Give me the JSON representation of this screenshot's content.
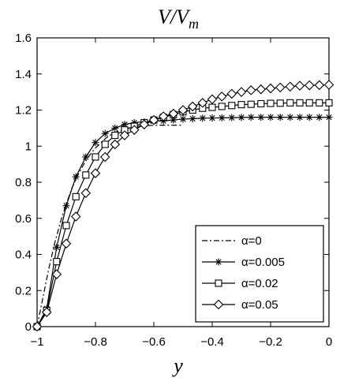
{
  "chart_data": {
    "type": "line",
    "title_main": "V/V",
    "title_sub": "m",
    "xlabel": "y",
    "xlim": [
      -1,
      0
    ],
    "ylim": [
      0,
      1.6
    ],
    "x_ticks": [
      "−1",
      "−0.8",
      "−0.6",
      "−0.4",
      "−0.2",
      "0"
    ],
    "x_tick_values": [
      -1,
      -0.8,
      -0.6,
      -0.4,
      -0.2,
      0
    ],
    "y_ticks": [
      "0",
      "0.2",
      "0.4",
      "0.6",
      "0.8",
      "1",
      "1.2",
      "1.4",
      "1.6"
    ],
    "y_tick_values": [
      0,
      0.2,
      0.4,
      0.6,
      0.8,
      1,
      1.2,
      1.4,
      1.6
    ],
    "grid": false,
    "legend_position": "bottom-right",
    "series": [
      {
        "name": "α=0",
        "style": "dashdot",
        "marker": "none",
        "x": [
          -1,
          -0.98,
          -0.96,
          -0.94,
          -0.92,
          -0.9,
          -0.88,
          -0.86,
          -0.84,
          -0.82,
          -0.8,
          -0.78,
          -0.76,
          -0.74,
          -0.72,
          -0.7,
          -0.68,
          -0.66,
          -0.64,
          -0.62,
          -0.6,
          -0.58,
          -0.56,
          -0.54,
          -0.52,
          -0.5
        ],
        "y": [
          0,
          0.16,
          0.32,
          0.46,
          0.58,
          0.68,
          0.77,
          0.84,
          0.9,
          0.95,
          0.99,
          1.02,
          1.05,
          1.07,
          1.085,
          1.095,
          1.103,
          1.108,
          1.112,
          1.114,
          1.115,
          1.116,
          1.116,
          1.116,
          1.116,
          1.116
        ]
      },
      {
        "name": "α=0.005",
        "style": "solid",
        "marker": "star",
        "x": [
          -1,
          -0.967,
          -0.933,
          -0.9,
          -0.867,
          -0.833,
          -0.8,
          -0.767,
          -0.733,
          -0.7,
          -0.667,
          -0.633,
          -0.6,
          -0.567,
          -0.533,
          -0.5,
          -0.467,
          -0.433,
          -0.4,
          -0.367,
          -0.333,
          -0.3,
          -0.267,
          -0.233,
          -0.2,
          -0.167,
          -0.133,
          -0.1,
          -0.067,
          -0.033,
          0
        ],
        "y": [
          0,
          0.1,
          0.44,
          0.67,
          0.83,
          0.94,
          1.02,
          1.07,
          1.1,
          1.12,
          1.13,
          1.135,
          1.14,
          1.14,
          1.145,
          1.15,
          1.152,
          1.155,
          1.156,
          1.157,
          1.158,
          1.159,
          1.16,
          1.16,
          1.16,
          1.16,
          1.16,
          1.16,
          1.16,
          1.16,
          1.16
        ]
      },
      {
        "name": "α=0.02",
        "style": "solid",
        "marker": "square",
        "x": [
          -1,
          -0.967,
          -0.933,
          -0.9,
          -0.867,
          -0.833,
          -0.8,
          -0.767,
          -0.733,
          -0.7,
          -0.667,
          -0.633,
          -0.6,
          -0.567,
          -0.533,
          -0.5,
          -0.467,
          -0.433,
          -0.4,
          -0.367,
          -0.333,
          -0.3,
          -0.267,
          -0.233,
          -0.2,
          -0.167,
          -0.133,
          -0.1,
          -0.067,
          -0.033,
          0
        ],
        "y": [
          0,
          0.09,
          0.36,
          0.56,
          0.72,
          0.84,
          0.94,
          1.01,
          1.06,
          1.09,
          1.11,
          1.13,
          1.145,
          1.16,
          1.175,
          1.19,
          1.2,
          1.21,
          1.215,
          1.22,
          1.225,
          1.23,
          1.232,
          1.235,
          1.237,
          1.238,
          1.24,
          1.24,
          1.24,
          1.24,
          1.24
        ]
      },
      {
        "name": "α=0.05",
        "style": "solid",
        "marker": "diamond",
        "x": [
          -1,
          -0.967,
          -0.933,
          -0.9,
          -0.867,
          -0.833,
          -0.8,
          -0.767,
          -0.733,
          -0.7,
          -0.667,
          -0.633,
          -0.6,
          -0.567,
          -0.533,
          -0.5,
          -0.467,
          -0.433,
          -0.4,
          -0.367,
          -0.333,
          -0.3,
          -0.267,
          -0.233,
          -0.2,
          -0.167,
          -0.133,
          -0.1,
          -0.067,
          -0.033,
          0
        ],
        "y": [
          0,
          0.08,
          0.29,
          0.46,
          0.61,
          0.74,
          0.85,
          0.94,
          1.01,
          1.06,
          1.09,
          1.12,
          1.145,
          1.165,
          1.18,
          1.2,
          1.22,
          1.24,
          1.26,
          1.275,
          1.29,
          1.3,
          1.31,
          1.315,
          1.32,
          1.325,
          1.33,
          1.335,
          1.337,
          1.338,
          1.34
        ]
      }
    ]
  }
}
